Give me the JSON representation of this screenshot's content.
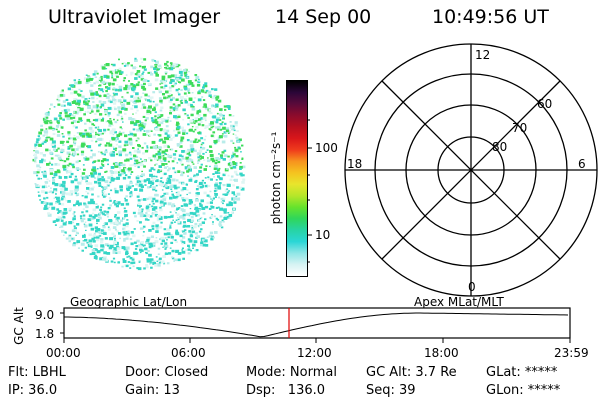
{
  "header": {
    "instrument": "Ultraviolet Imager",
    "date": "14 Sep 00",
    "time": "10:49:56 UT"
  },
  "imager": {
    "colors": {
      "cyan": "#35d6c6",
      "light_cyan": "#b8ecea",
      "green": "#3ddc5a",
      "pale": "#dff6f3"
    }
  },
  "colorbar": {
    "unit_label": "photon cm⁻²s⁻¹",
    "ticks": [
      "100",
      "10"
    ],
    "stops": [
      "#000000",
      "#2b0638",
      "#5a0a3a",
      "#8c0b2c",
      "#b50f1f",
      "#d9161a",
      "#ef3b1c",
      "#f7931e",
      "#f5c31f",
      "#e8e52c",
      "#b6e62a",
      "#66e32c",
      "#2fd65b",
      "#27d4a4",
      "#2ad6d6",
      "#8fe6e6",
      "#d6f3f3",
      "#ffffff"
    ]
  },
  "polar": {
    "mlt_labels": {
      "top": "12",
      "left": "18",
      "right": "6",
      "bottom": "0"
    },
    "lat_labels": [
      "60",
      "70",
      "80"
    ]
  },
  "timeline": {
    "left_label": "Geographic Lat/Lon",
    "right_label": "Apex MLat/MLT",
    "axis_title": "GC Alt",
    "y_ticks": [
      "9.0",
      "1.8"
    ],
    "x_ticks": [
      "00:00",
      "06:00",
      "12:00",
      "18:00",
      "23:59"
    ],
    "marker_color": "#e00000"
  },
  "info": {
    "flt": "Flt: LBHL",
    "door": "Door: Closed",
    "mode": "Mode: Normal",
    "gc_alt": "GC Alt: 3.7 Re",
    "glat": "GLat: *****",
    "ip": "IP: 36.0",
    "gain": "Gain: 13",
    "dsp": "Dsp:   136.0",
    "seq": "Seq: 39",
    "glon": "GLon: *****"
  }
}
